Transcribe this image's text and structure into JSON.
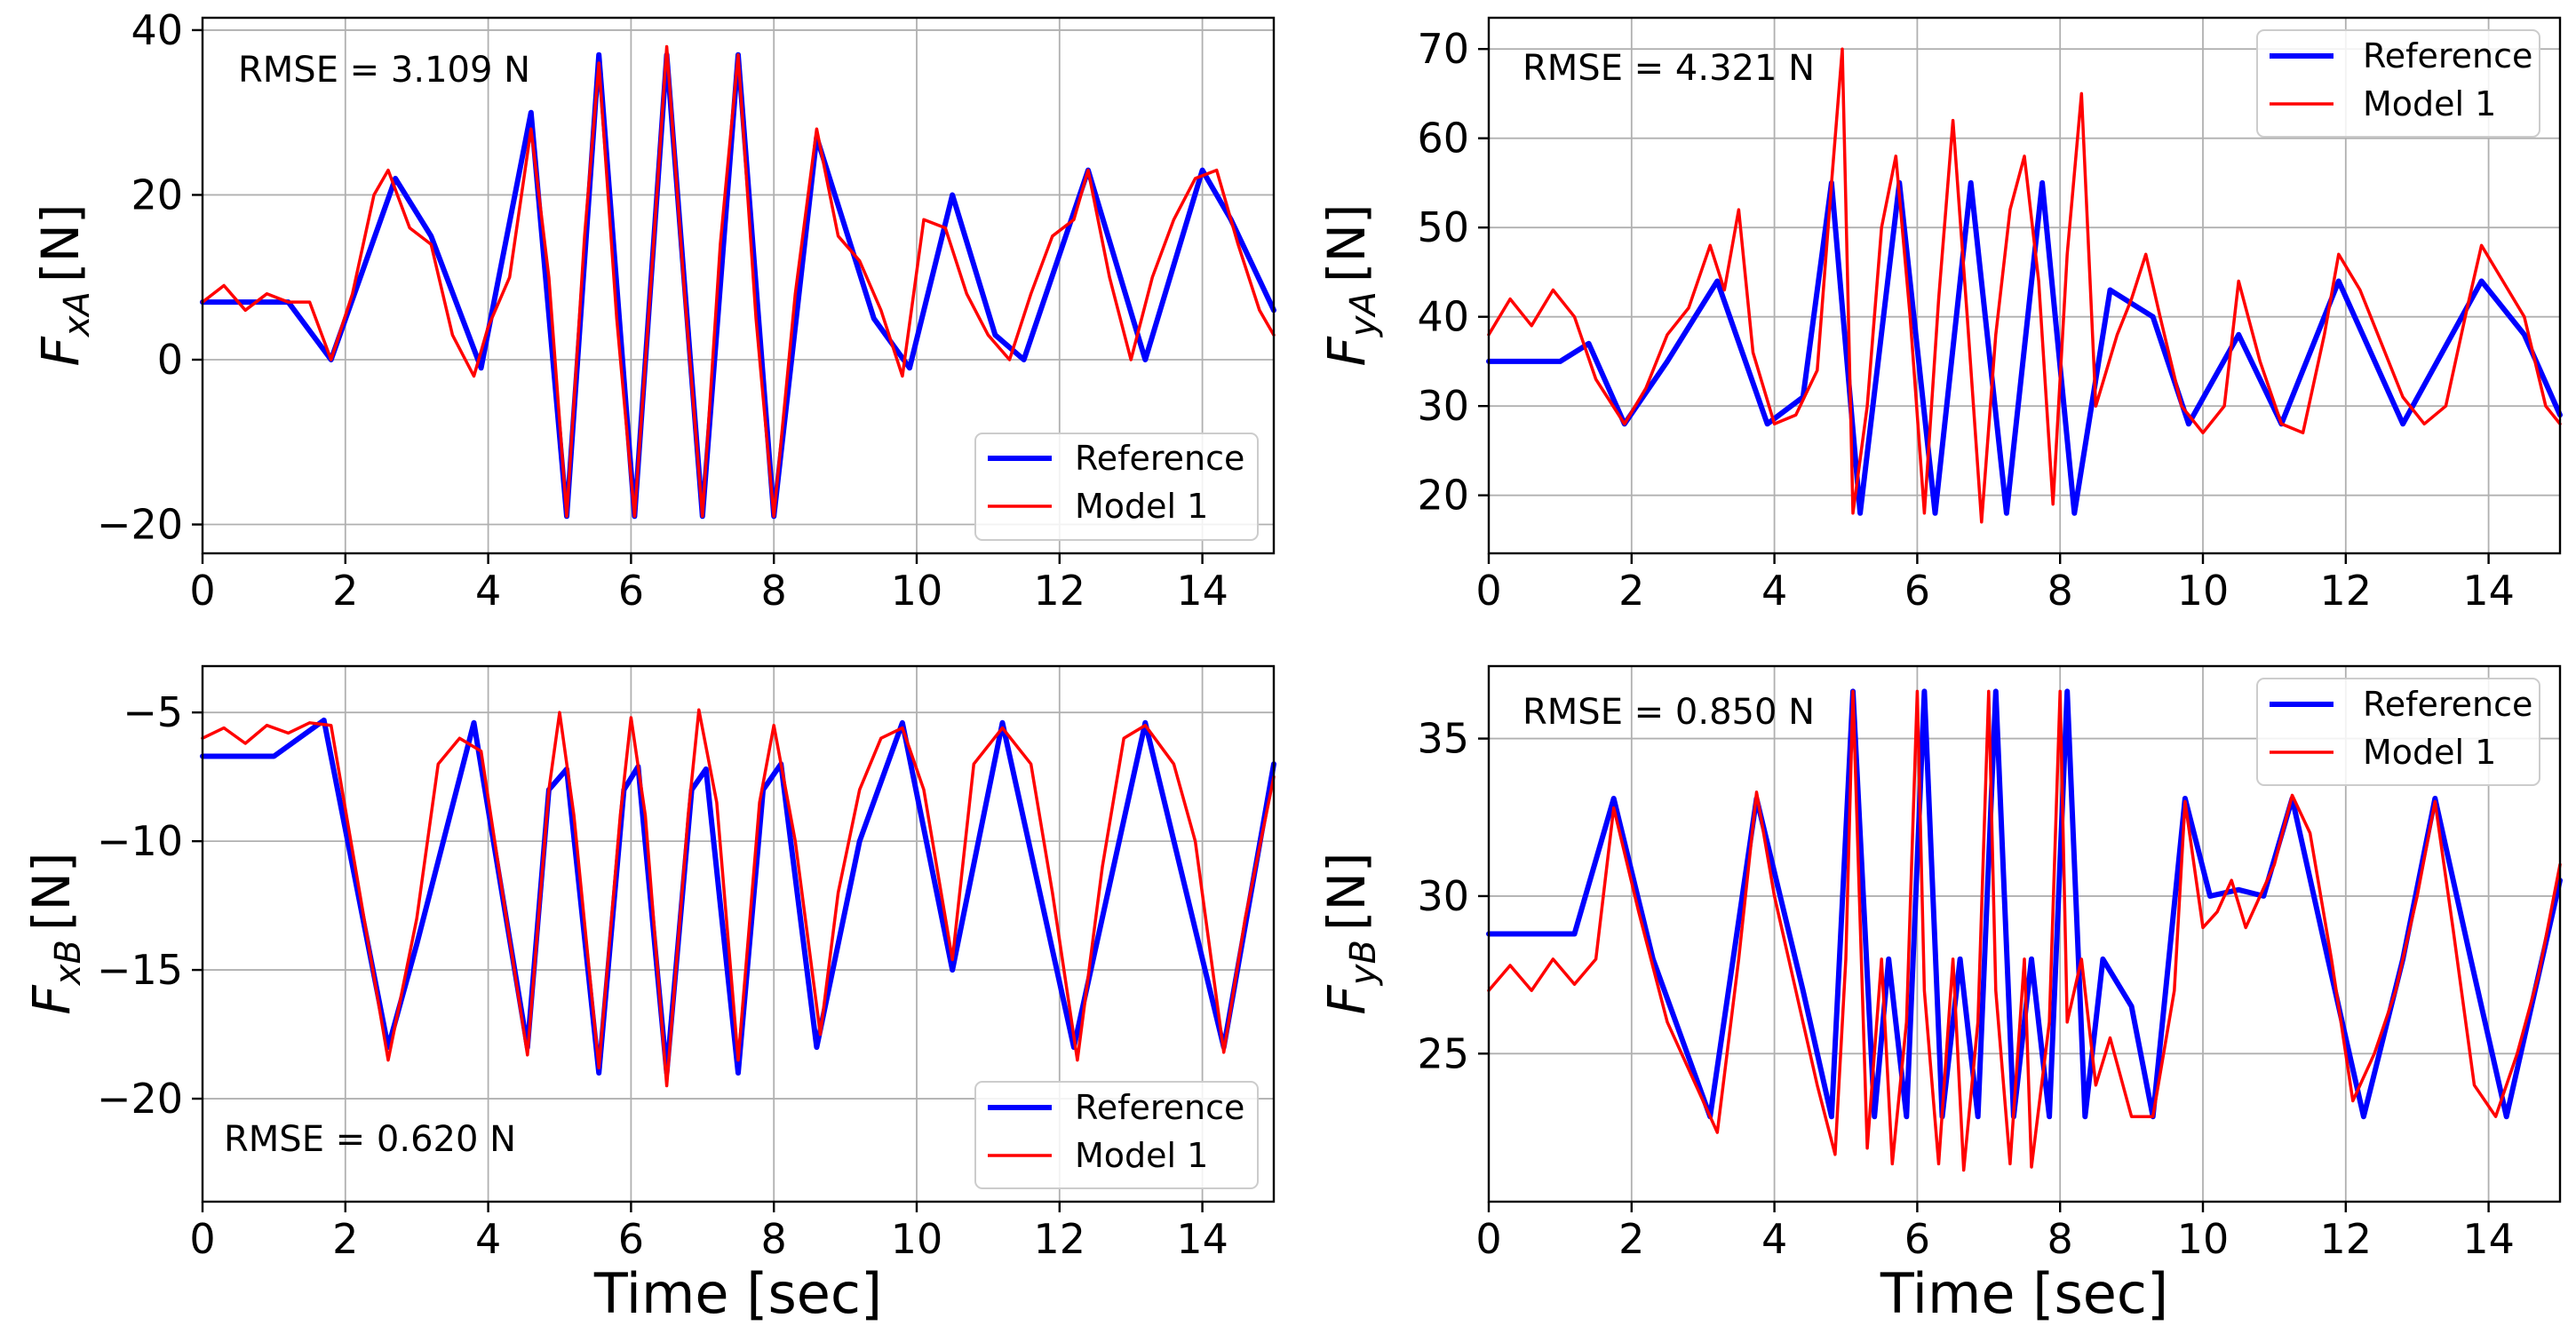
{
  "chart_data": [
    {
      "type": "line",
      "ylabel": {
        "symbol": "F",
        "subscript": "xA",
        "unit": "[N]"
      },
      "xlabel": "",
      "xlim": [
        0,
        15
      ],
      "ylim": [
        -23.5,
        41.5
      ],
      "xticks": [
        0,
        2,
        4,
        6,
        8,
        10,
        12,
        14
      ],
      "xtick_labels": [
        "0",
        "2",
        "4",
        "6",
        "8",
        "10",
        "12",
        "14"
      ],
      "yticks": [
        -20,
        0,
        20,
        40
      ],
      "ytick_labels": [
        "−20",
        "0",
        "20",
        "40"
      ],
      "annotation": "RMSE = 3.109 N",
      "annotation_position": "top-left",
      "legend": [
        "Reference",
        "Model 1"
      ],
      "legend_position": "bottom-right",
      "colors": {
        "reference": "#0000ff",
        "model": "#ff0000"
      },
      "series": [
        {
          "name": "Reference",
          "x": [
            0,
            1.2,
            1.8,
            2.7,
            3.2,
            3.9,
            4.6,
            5.1,
            5.55,
            6.05,
            6.5,
            7.0,
            7.5,
            8.0,
            8.6,
            9.4,
            9.9,
            10.5,
            11.1,
            11.5,
            12.4,
            13.2,
            14.0,
            14.4,
            15.0
          ],
          "values": [
            7,
            7,
            0,
            22,
            15,
            -1,
            30,
            -19,
            37,
            -19,
            37,
            -19,
            37,
            -19,
            27,
            5,
            -1,
            20,
            3,
            0,
            23,
            0,
            23,
            17,
            6
          ]
        },
        {
          "name": "Model 1",
          "x": [
            0,
            0.3,
            0.6,
            0.9,
            1.2,
            1.5,
            1.8,
            2.1,
            2.4,
            2.6,
            2.9,
            3.2,
            3.5,
            3.8,
            4.0,
            4.3,
            4.6,
            4.85,
            5.1,
            5.35,
            5.55,
            5.8,
            6.05,
            6.3,
            6.5,
            6.75,
            7.0,
            7.25,
            7.5,
            7.75,
            8.0,
            8.3,
            8.6,
            8.9,
            9.2,
            9.5,
            9.8,
            10.1,
            10.4,
            10.7,
            11.0,
            11.3,
            11.6,
            11.9,
            12.2,
            12.4,
            12.7,
            13.0,
            13.3,
            13.6,
            13.9,
            14.2,
            14.5,
            14.8,
            15.0
          ],
          "values": [
            7,
            9,
            6,
            8,
            7,
            7,
            0,
            8,
            20,
            23,
            16,
            14,
            3,
            -2,
            4,
            10,
            28,
            10,
            -19,
            15,
            36,
            5,
            -19,
            12,
            38,
            8,
            -19,
            14,
            37,
            5,
            -19,
            8,
            28,
            15,
            12,
            6,
            -2,
            17,
            16,
            8,
            3,
            0,
            8,
            15,
            17,
            23,
            10,
            0,
            10,
            17,
            22,
            23,
            14,
            6,
            3
          ]
        }
      ]
    },
    {
      "type": "line",
      "ylabel": {
        "symbol": "F",
        "subscript": "yA",
        "unit": "[N]"
      },
      "xlabel": "",
      "xlim": [
        0,
        15
      ],
      "ylim": [
        13.5,
        73.5
      ],
      "xticks": [
        0,
        2,
        4,
        6,
        8,
        10,
        12,
        14
      ],
      "xtick_labels": [
        "0",
        "2",
        "4",
        "6",
        "8",
        "10",
        "12",
        "14"
      ],
      "yticks": [
        20,
        30,
        40,
        50,
        60,
        70
      ],
      "ytick_labels": [
        "20",
        "30",
        "40",
        "50",
        "60",
        "70"
      ],
      "annotation": "RMSE = 4.321 N",
      "annotation_position": "top-left",
      "legend": [
        "Reference",
        "Model 1"
      ],
      "legend_position": "top-right",
      "colors": {
        "reference": "#0000ff",
        "model": "#ff0000"
      },
      "series": [
        {
          "name": "Reference",
          "x": [
            0,
            1.0,
            1.4,
            1.9,
            2.5,
            3.2,
            3.9,
            4.4,
            4.8,
            5.2,
            5.75,
            6.25,
            6.75,
            7.25,
            7.75,
            8.2,
            8.7,
            9.3,
            9.8,
            10.5,
            11.1,
            11.9,
            12.8,
            13.9,
            14.5,
            15.0
          ],
          "values": [
            35,
            35,
            37,
            28,
            35,
            44,
            28,
            31,
            55,
            18,
            55,
            18,
            55,
            18,
            55,
            18,
            43,
            40,
            28,
            38,
            28,
            44,
            28,
            44,
            38,
            29
          ]
        },
        {
          "name": "Model 1",
          "x": [
            0,
            0.3,
            0.6,
            0.9,
            1.2,
            1.5,
            1.9,
            2.2,
            2.5,
            2.8,
            3.1,
            3.3,
            3.5,
            3.7,
            4.0,
            4.3,
            4.6,
            4.8,
            4.95,
            5.1,
            5.3,
            5.5,
            5.7,
            5.9,
            6.1,
            6.3,
            6.5,
            6.7,
            6.9,
            7.1,
            7.3,
            7.5,
            7.7,
            7.9,
            8.1,
            8.3,
            8.5,
            8.8,
            9.0,
            9.2,
            9.4,
            9.7,
            10.0,
            10.3,
            10.5,
            10.8,
            11.1,
            11.4,
            11.7,
            11.9,
            12.2,
            12.5,
            12.8,
            13.1,
            13.4,
            13.7,
            13.9,
            14.2,
            14.5,
            14.8,
            15.0
          ],
          "values": [
            38,
            42,
            39,
            43,
            40,
            33,
            28,
            32,
            38,
            41,
            48,
            43,
            52,
            36,
            28,
            29,
            34,
            55,
            70,
            18,
            30,
            50,
            58,
            40,
            18,
            42,
            62,
            40,
            17,
            38,
            52,
            58,
            44,
            19,
            47,
            65,
            30,
            38,
            42,
            47,
            40,
            30,
            27,
            30,
            44,
            35,
            28,
            27,
            38,
            47,
            43,
            37,
            31,
            28,
            30,
            41,
            48,
            44,
            40,
            30,
            28
          ]
        }
      ]
    },
    {
      "type": "line",
      "ylabel": {
        "symbol": "F",
        "subscript": "xB",
        "unit": "[N]"
      },
      "xlabel": "Time [sec]",
      "xlim": [
        0,
        15
      ],
      "ylim": [
        -24,
        -3.2
      ],
      "xticks": [
        0,
        2,
        4,
        6,
        8,
        10,
        12,
        14
      ],
      "xtick_labels": [
        "0",
        "2",
        "4",
        "6",
        "8",
        "10",
        "12",
        "14"
      ],
      "yticks": [
        -20,
        -15,
        -10,
        -5
      ],
      "ytick_labels": [
        "−20",
        "−15",
        "−10",
        "−5"
      ],
      "annotation": "RMSE = 0.620 N",
      "annotation_position": "bottom-left",
      "legend": [
        "Reference",
        "Model 1"
      ],
      "legend_position": "bottom-right",
      "colors": {
        "reference": "#0000ff",
        "model": "#ff0000"
      },
      "series": [
        {
          "name": "Reference",
          "x": [
            0,
            1.0,
            1.7,
            2.6,
            3.0,
            3.8,
            4.55,
            4.85,
            5.1,
            5.55,
            5.9,
            6.1,
            6.5,
            6.85,
            7.05,
            7.5,
            7.85,
            8.1,
            8.6,
            9.2,
            9.8,
            10.5,
            11.2,
            12.2,
            13.2,
            14.3,
            15.0
          ],
          "values": [
            -6.7,
            -6.7,
            -5.3,
            -18,
            -14,
            -5.4,
            -18,
            -8,
            -7.2,
            -19,
            -8,
            -7.1,
            -19,
            -8,
            -7.2,
            -19,
            -8,
            -7,
            -18,
            -10,
            -5.4,
            -15,
            -5.4,
            -18,
            -5.4,
            -18,
            -7
          ]
        },
        {
          "name": "Model 1",
          "x": [
            0,
            0.3,
            0.6,
            0.9,
            1.2,
            1.5,
            1.8,
            2.2,
            2.6,
            3.0,
            3.3,
            3.6,
            3.9,
            4.2,
            4.55,
            4.85,
            5.0,
            5.2,
            5.55,
            5.85,
            6.0,
            6.2,
            6.5,
            6.8,
            6.95,
            7.2,
            7.5,
            7.8,
            8.0,
            8.3,
            8.65,
            8.9,
            9.2,
            9.5,
            9.8,
            10.1,
            10.5,
            10.8,
            11.2,
            11.6,
            11.9,
            12.25,
            12.6,
            12.9,
            13.2,
            13.6,
            13.9,
            14.3,
            14.6,
            15.0
          ],
          "values": [
            -6,
            -5.6,
            -6.2,
            -5.5,
            -5.8,
            -5.4,
            -5.5,
            -12,
            -18.5,
            -13,
            -7,
            -6,
            -6.5,
            -12,
            -18.3,
            -8,
            -5,
            -9,
            -18.8,
            -9,
            -5.2,
            -9,
            -19.5,
            -9,
            -4.9,
            -8.5,
            -18.5,
            -8.5,
            -5.5,
            -10,
            -17.5,
            -12,
            -8,
            -6,
            -5.6,
            -8,
            -14.6,
            -7,
            -5.6,
            -7,
            -12,
            -18.5,
            -11,
            -6,
            -5.5,
            -7,
            -10,
            -18.2,
            -13,
            -7.5
          ]
        }
      ]
    },
    {
      "type": "line",
      "ylabel": {
        "symbol": "F",
        "subscript": "yB",
        "unit": "[N]"
      },
      "xlabel": "Time [sec]",
      "xlim": [
        0,
        15
      ],
      "ylim": [
        20.3,
        37.3
      ],
      "xticks": [
        0,
        2,
        4,
        6,
        8,
        10,
        12,
        14
      ],
      "xtick_labels": [
        "0",
        "2",
        "4",
        "6",
        "8",
        "10",
        "12",
        "14"
      ],
      "yticks": [
        25,
        30,
        35
      ],
      "ytick_labels": [
        "25",
        "30",
        "35"
      ],
      "annotation": "RMSE = 0.850 N",
      "annotation_position": "top-left",
      "legend": [
        "Reference",
        "Model 1"
      ],
      "legend_position": "top-right",
      "colors": {
        "reference": "#0000ff",
        "model": "#ff0000"
      },
      "series": [
        {
          "name": "Reference",
          "x": [
            0,
            1.2,
            1.75,
            2.3,
            3.1,
            3.75,
            4.4,
            4.8,
            5.1,
            5.4,
            5.6,
            5.85,
            6.1,
            6.35,
            6.6,
            6.85,
            7.1,
            7.35,
            7.6,
            7.85,
            8.1,
            8.35,
            8.6,
            9.0,
            9.3,
            9.75,
            10.1,
            10.5,
            10.85,
            11.25,
            11.75,
            12.25,
            12.8,
            13.25,
            13.75,
            14.25,
            15.0
          ],
          "values": [
            28.8,
            28.8,
            33.1,
            28,
            23,
            33.1,
            27,
            23,
            36.5,
            23,
            28,
            23,
            36.5,
            23,
            28,
            23,
            36.5,
            23,
            28,
            23,
            36.5,
            23,
            28,
            26.5,
            23,
            33.1,
            30,
            30.2,
            30,
            33.1,
            28,
            23,
            28,
            33.1,
            28,
            23,
            30.5
          ]
        },
        {
          "name": "Model 1",
          "x": [
            0,
            0.3,
            0.6,
            0.9,
            1.2,
            1.5,
            1.75,
            2.1,
            2.5,
            2.9,
            3.2,
            3.5,
            3.75,
            4.0,
            4.3,
            4.6,
            4.85,
            5.0,
            5.1,
            5.3,
            5.5,
            5.65,
            5.85,
            6.0,
            6.1,
            6.3,
            6.5,
            6.65,
            6.85,
            7.0,
            7.1,
            7.3,
            7.5,
            7.6,
            7.85,
            8.0,
            8.1,
            8.3,
            8.5,
            8.7,
            9.0,
            9.3,
            9.6,
            9.75,
            10.0,
            10.2,
            10.4,
            10.6,
            10.8,
            11.0,
            11.25,
            11.5,
            11.8,
            12.1,
            12.4,
            12.7,
            13.0,
            13.25,
            13.5,
            13.8,
            14.1,
            14.4,
            14.7,
            15.0
          ],
          "values": [
            27,
            27.8,
            27,
            28,
            27.2,
            28,
            32.8,
            29.5,
            26,
            24,
            22.5,
            28,
            33.3,
            30,
            27,
            24,
            21.8,
            28,
            36.5,
            22,
            28,
            21.5,
            26,
            36.5,
            27,
            21.5,
            28,
            21.3,
            26,
            36.5,
            27,
            21.5,
            28,
            21.4,
            26,
            36.5,
            26,
            28,
            24,
            25.5,
            23,
            23,
            27,
            33,
            29,
            29.5,
            30.5,
            29,
            30,
            31,
            33.2,
            32,
            28,
            23.5,
            25,
            27,
            30,
            33,
            29,
            24,
            23,
            25,
            27.5,
            31
          ]
        }
      ]
    }
  ]
}
